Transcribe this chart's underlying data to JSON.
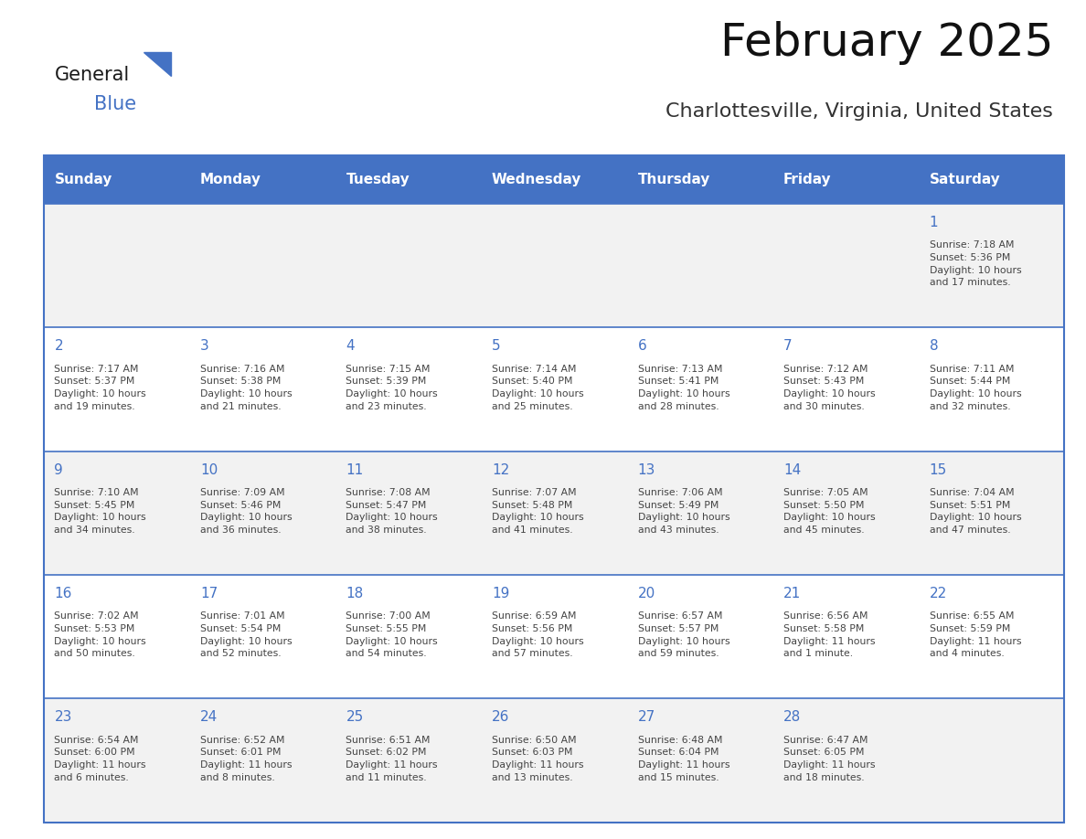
{
  "title": "February 2025",
  "subtitle": "Charlottesville, Virginia, United States",
  "header_color": "#4472C4",
  "header_text_color": "#FFFFFF",
  "cell_bg_even": "#F2F2F2",
  "cell_bg_odd": "#FFFFFF",
  "day_number_color": "#4472C4",
  "text_color": "#444444",
  "border_color": "#4472C4",
  "days_of_week": [
    "Sunday",
    "Monday",
    "Tuesday",
    "Wednesday",
    "Thursday",
    "Friday",
    "Saturday"
  ],
  "calendar_data": [
    [
      null,
      null,
      null,
      null,
      null,
      null,
      {
        "day": 1,
        "sunrise": "7:18 AM",
        "sunset": "5:36 PM",
        "daylight": "10 hours\nand 17 minutes."
      }
    ],
    [
      {
        "day": 2,
        "sunrise": "7:17 AM",
        "sunset": "5:37 PM",
        "daylight": "10 hours\nand 19 minutes."
      },
      {
        "day": 3,
        "sunrise": "7:16 AM",
        "sunset": "5:38 PM",
        "daylight": "10 hours\nand 21 minutes."
      },
      {
        "day": 4,
        "sunrise": "7:15 AM",
        "sunset": "5:39 PM",
        "daylight": "10 hours\nand 23 minutes."
      },
      {
        "day": 5,
        "sunrise": "7:14 AM",
        "sunset": "5:40 PM",
        "daylight": "10 hours\nand 25 minutes."
      },
      {
        "day": 6,
        "sunrise": "7:13 AM",
        "sunset": "5:41 PM",
        "daylight": "10 hours\nand 28 minutes."
      },
      {
        "day": 7,
        "sunrise": "7:12 AM",
        "sunset": "5:43 PM",
        "daylight": "10 hours\nand 30 minutes."
      },
      {
        "day": 8,
        "sunrise": "7:11 AM",
        "sunset": "5:44 PM",
        "daylight": "10 hours\nand 32 minutes."
      }
    ],
    [
      {
        "day": 9,
        "sunrise": "7:10 AM",
        "sunset": "5:45 PM",
        "daylight": "10 hours\nand 34 minutes."
      },
      {
        "day": 10,
        "sunrise": "7:09 AM",
        "sunset": "5:46 PM",
        "daylight": "10 hours\nand 36 minutes."
      },
      {
        "day": 11,
        "sunrise": "7:08 AM",
        "sunset": "5:47 PM",
        "daylight": "10 hours\nand 38 minutes."
      },
      {
        "day": 12,
        "sunrise": "7:07 AM",
        "sunset": "5:48 PM",
        "daylight": "10 hours\nand 41 minutes."
      },
      {
        "day": 13,
        "sunrise": "7:06 AM",
        "sunset": "5:49 PM",
        "daylight": "10 hours\nand 43 minutes."
      },
      {
        "day": 14,
        "sunrise": "7:05 AM",
        "sunset": "5:50 PM",
        "daylight": "10 hours\nand 45 minutes."
      },
      {
        "day": 15,
        "sunrise": "7:04 AM",
        "sunset": "5:51 PM",
        "daylight": "10 hours\nand 47 minutes."
      }
    ],
    [
      {
        "day": 16,
        "sunrise": "7:02 AM",
        "sunset": "5:53 PM",
        "daylight": "10 hours\nand 50 minutes."
      },
      {
        "day": 17,
        "sunrise": "7:01 AM",
        "sunset": "5:54 PM",
        "daylight": "10 hours\nand 52 minutes."
      },
      {
        "day": 18,
        "sunrise": "7:00 AM",
        "sunset": "5:55 PM",
        "daylight": "10 hours\nand 54 minutes."
      },
      {
        "day": 19,
        "sunrise": "6:59 AM",
        "sunset": "5:56 PM",
        "daylight": "10 hours\nand 57 minutes."
      },
      {
        "day": 20,
        "sunrise": "6:57 AM",
        "sunset": "5:57 PM",
        "daylight": "10 hours\nand 59 minutes."
      },
      {
        "day": 21,
        "sunrise": "6:56 AM",
        "sunset": "5:58 PM",
        "daylight": "11 hours\nand 1 minute."
      },
      {
        "day": 22,
        "sunrise": "6:55 AM",
        "sunset": "5:59 PM",
        "daylight": "11 hours\nand 4 minutes."
      }
    ],
    [
      {
        "day": 23,
        "sunrise": "6:54 AM",
        "sunset": "6:00 PM",
        "daylight": "11 hours\nand 6 minutes."
      },
      {
        "day": 24,
        "sunrise": "6:52 AM",
        "sunset": "6:01 PM",
        "daylight": "11 hours\nand 8 minutes."
      },
      {
        "day": 25,
        "sunrise": "6:51 AM",
        "sunset": "6:02 PM",
        "daylight": "11 hours\nand 11 minutes."
      },
      {
        "day": 26,
        "sunrise": "6:50 AM",
        "sunset": "6:03 PM",
        "daylight": "11 hours\nand 13 minutes."
      },
      {
        "day": 27,
        "sunrise": "6:48 AM",
        "sunset": "6:04 PM",
        "daylight": "11 hours\nand 15 minutes."
      },
      {
        "day": 28,
        "sunrise": "6:47 AM",
        "sunset": "6:05 PM",
        "daylight": "11 hours\nand 18 minutes."
      },
      null
    ]
  ]
}
